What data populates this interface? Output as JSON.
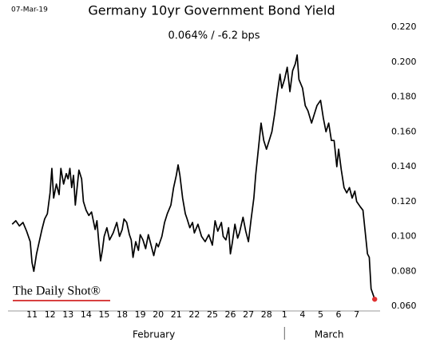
{
  "chart_data": {
    "type": "line",
    "date": "07-Mar-19",
    "title": "Germany 10yr Government Bond Yield",
    "subtitle": "0.064%  /  -6.2 bps",
    "source_logo": "The Daily Shot®",
    "months": [
      "February",
      "March"
    ],
    "color": "#000000",
    "end_marker_color": "#e03030",
    "xlim": [
      -1.2,
      19.3
    ],
    "xticks": [
      {
        "value": 0,
        "label": "11"
      },
      {
        "value": 1,
        "label": "12"
      },
      {
        "value": 2,
        "label": "13"
      },
      {
        "value": 3,
        "label": "14"
      },
      {
        "value": 4,
        "label": "15"
      },
      {
        "value": 5,
        "label": "18"
      },
      {
        "value": 6,
        "label": "19"
      },
      {
        "value": 7,
        "label": "20"
      },
      {
        "value": 8,
        "label": "21"
      },
      {
        "value": 9,
        "label": "22"
      },
      {
        "value": 10,
        "label": "25"
      },
      {
        "value": 11,
        "label": "26"
      },
      {
        "value": 12,
        "label": "27"
      },
      {
        "value": 13,
        "label": "28"
      },
      {
        "value": 14,
        "label": "1"
      },
      {
        "value": 15,
        "label": "4"
      },
      {
        "value": 16,
        "label": "5"
      },
      {
        "value": 17,
        "label": "6"
      },
      {
        "value": 18,
        "label": "7"
      }
    ],
    "ylim": [
      0.058,
      0.224
    ],
    "yticks": [
      {
        "value": 0.06,
        "label": "0.060"
      },
      {
        "value": 0.08,
        "label": "0.080"
      },
      {
        "value": 0.1,
        "label": "0.100"
      },
      {
        "value": 0.12,
        "label": "0.120"
      },
      {
        "value": 0.14,
        "label": "0.140"
      },
      {
        "value": 0.16,
        "label": "0.160"
      },
      {
        "value": 0.18,
        "label": "0.180"
      },
      {
        "value": 0.2,
        "label": "0.200"
      },
      {
        "value": 0.22,
        "label": "0.220"
      }
    ],
    "grid": false,
    "x": [
      -1.1,
      -0.9,
      -0.7,
      -0.5,
      -0.3,
      -0.1,
      0,
      0.1,
      0.25,
      0.4,
      0.55,
      0.7,
      0.85,
      1.0,
      1.1,
      1.2,
      1.35,
      1.5,
      1.6,
      1.75,
      1.9,
      2.0,
      2.1,
      2.2,
      2.3,
      2.4,
      2.5,
      2.6,
      2.75,
      2.85,
      3.0,
      3.15,
      3.3,
      3.5,
      3.6,
      3.7,
      3.8,
      3.9,
      4.0,
      4.15,
      4.3,
      4.5,
      4.7,
      4.85,
      5.0,
      5.1,
      5.25,
      5.4,
      5.5,
      5.6,
      5.75,
      5.9,
      6.0,
      6.15,
      6.3,
      6.45,
      6.6,
      6.75,
      6.9,
      7.0,
      7.2,
      7.35,
      7.5,
      7.7,
      7.85,
      8.0,
      8.1,
      8.2,
      8.35,
      8.5,
      8.6,
      8.75,
      8.9,
      9.0,
      9.2,
      9.4,
      9.6,
      9.8,
      10.0,
      10.15,
      10.3,
      10.5,
      10.6,
      10.75,
      10.9,
      11.0,
      11.1,
      11.25,
      11.4,
      11.5,
      11.7,
      11.85,
      12.0,
      12.15,
      12.3,
      12.4,
      12.55,
      12.7,
      12.85,
      13.0,
      13.15,
      13.3,
      13.45,
      13.6,
      13.75,
      13.85,
      14.0,
      14.15,
      14.3,
      14.45,
      14.6,
      14.7,
      14.8,
      15.0,
      15.15,
      15.3,
      15.5,
      15.65,
      15.8,
      16.0,
      16.15,
      16.3,
      16.45,
      16.6,
      16.75,
      16.9,
      17.0,
      17.15,
      17.3,
      17.45,
      17.6,
      17.75,
      17.9,
      18.0,
      18.2,
      18.35,
      18.5,
      18.6,
      18.7,
      18.8,
      18.9,
      19.0
    ],
    "values": [
      0.107,
      0.109,
      0.106,
      0.108,
      0.103,
      0.097,
      0.085,
      0.08,
      0.09,
      0.097,
      0.104,
      0.11,
      0.113,
      0.125,
      0.139,
      0.122,
      0.13,
      0.124,
      0.139,
      0.13,
      0.136,
      0.133,
      0.139,
      0.128,
      0.135,
      0.118,
      0.128,
      0.138,
      0.133,
      0.12,
      0.115,
      0.112,
      0.114,
      0.104,
      0.109,
      0.097,
      0.086,
      0.092,
      0.1,
      0.105,
      0.098,
      0.102,
      0.108,
      0.1,
      0.104,
      0.11,
      0.108,
      0.101,
      0.098,
      0.088,
      0.097,
      0.092,
      0.101,
      0.098,
      0.093,
      0.101,
      0.095,
      0.089,
      0.096,
      0.094,
      0.1,
      0.108,
      0.113,
      0.118,
      0.128,
      0.135,
      0.141,
      0.135,
      0.122,
      0.113,
      0.11,
      0.105,
      0.108,
      0.102,
      0.107,
      0.1,
      0.097,
      0.101,
      0.095,
      0.109,
      0.103,
      0.108,
      0.1,
      0.098,
      0.105,
      0.09,
      0.096,
      0.107,
      0.099,
      0.102,
      0.111,
      0.103,
      0.097,
      0.11,
      0.122,
      0.135,
      0.15,
      0.165,
      0.155,
      0.15,
      0.155,
      0.16,
      0.17,
      0.182,
      0.193,
      0.185,
      0.19,
      0.197,
      0.183,
      0.195,
      0.199,
      0.204,
      0.19,
      0.185,
      0.175,
      0.172,
      0.165,
      0.17,
      0.175,
      0.178,
      0.168,
      0.16,
      0.165,
      0.155,
      0.155,
      0.14,
      0.15,
      0.138,
      0.128,
      0.125,
      0.128,
      0.122,
      0.126,
      0.12,
      0.117,
      0.115,
      0.1,
      0.09,
      0.088,
      0.07,
      0.067,
      0.064
    ]
  }
}
